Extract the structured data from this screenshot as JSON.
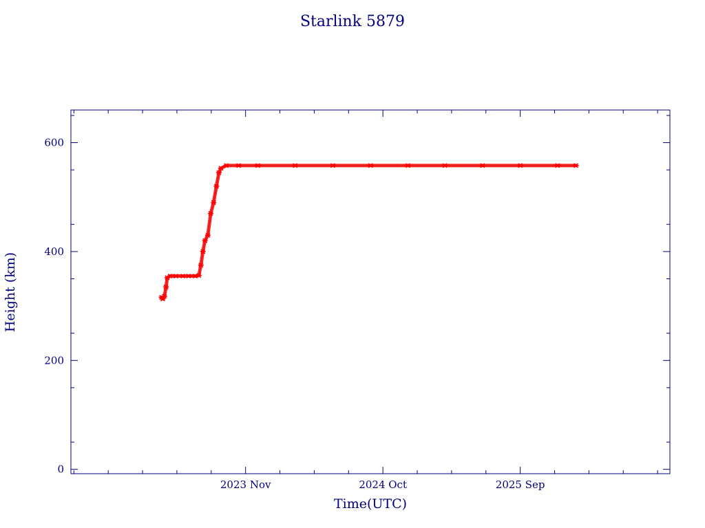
{
  "chart_data": {
    "type": "scatter",
    "title": "Starlink 5879",
    "xlabel": "Time(UTC)",
    "ylabel": "Height (km)",
    "xlim": [
      "2022-09-01",
      "2026-09-01"
    ],
    "ylim": [
      -8,
      660
    ],
    "x_ticks": [
      {
        "date": "2023-11-01",
        "label": "2023 Nov"
      },
      {
        "date": "2024-10-01",
        "label": "2024 Oct"
      },
      {
        "date": "2025-09-01",
        "label": "2025 Sep"
      }
    ],
    "y_ticks": [
      0,
      200,
      400,
      600
    ],
    "grid": false,
    "colors": {
      "axis": "#00007f",
      "points": "#ff0000",
      "trace": "#00a0a0",
      "background": "#ffffff"
    },
    "series": [
      {
        "points": [
          {
            "x": "2023-04-10",
            "y": 316
          },
          {
            "x": "2023-04-13",
            "y": 313
          },
          {
            "x": "2023-04-17",
            "y": 318
          },
          {
            "x": "2023-04-21",
            "y": 335
          },
          {
            "x": "2023-04-24",
            "y": 352
          },
          {
            "x": "2023-05-01",
            "y": 355
          },
          {
            "x": "2023-05-15",
            "y": 355
          },
          {
            "x": "2023-06-01",
            "y": 355
          },
          {
            "x": "2023-06-15",
            "y": 355
          },
          {
            "x": "2023-07-01",
            "y": 355
          },
          {
            "x": "2023-07-10",
            "y": 356
          },
          {
            "x": "2023-07-15",
            "y": 375
          },
          {
            "x": "2023-07-20",
            "y": 400
          },
          {
            "x": "2023-07-25",
            "y": 420
          },
          {
            "x": "2023-08-01",
            "y": 430
          },
          {
            "x": "2023-08-08",
            "y": 470
          },
          {
            "x": "2023-08-15",
            "y": 490
          },
          {
            "x": "2023-08-22",
            "y": 520
          },
          {
            "x": "2023-08-28",
            "y": 545
          },
          {
            "x": "2023-09-02",
            "y": 553
          },
          {
            "x": "2023-09-15",
            "y": 558
          },
          {
            "x": "2023-10-15",
            "y": 558
          },
          {
            "x": "2023-12-01",
            "y": 558
          },
          {
            "x": "2024-03-01",
            "y": 558
          },
          {
            "x": "2024-06-01",
            "y": 558
          },
          {
            "x": "2024-09-01",
            "y": 558
          },
          {
            "x": "2024-12-01",
            "y": 558
          },
          {
            "x": "2025-03-01",
            "y": 558
          },
          {
            "x": "2025-06-01",
            "y": 558
          },
          {
            "x": "2025-09-01",
            "y": 558
          },
          {
            "x": "2025-12-01",
            "y": 558
          },
          {
            "x": "2026-01-15",
            "y": 558
          }
        ]
      }
    ]
  }
}
